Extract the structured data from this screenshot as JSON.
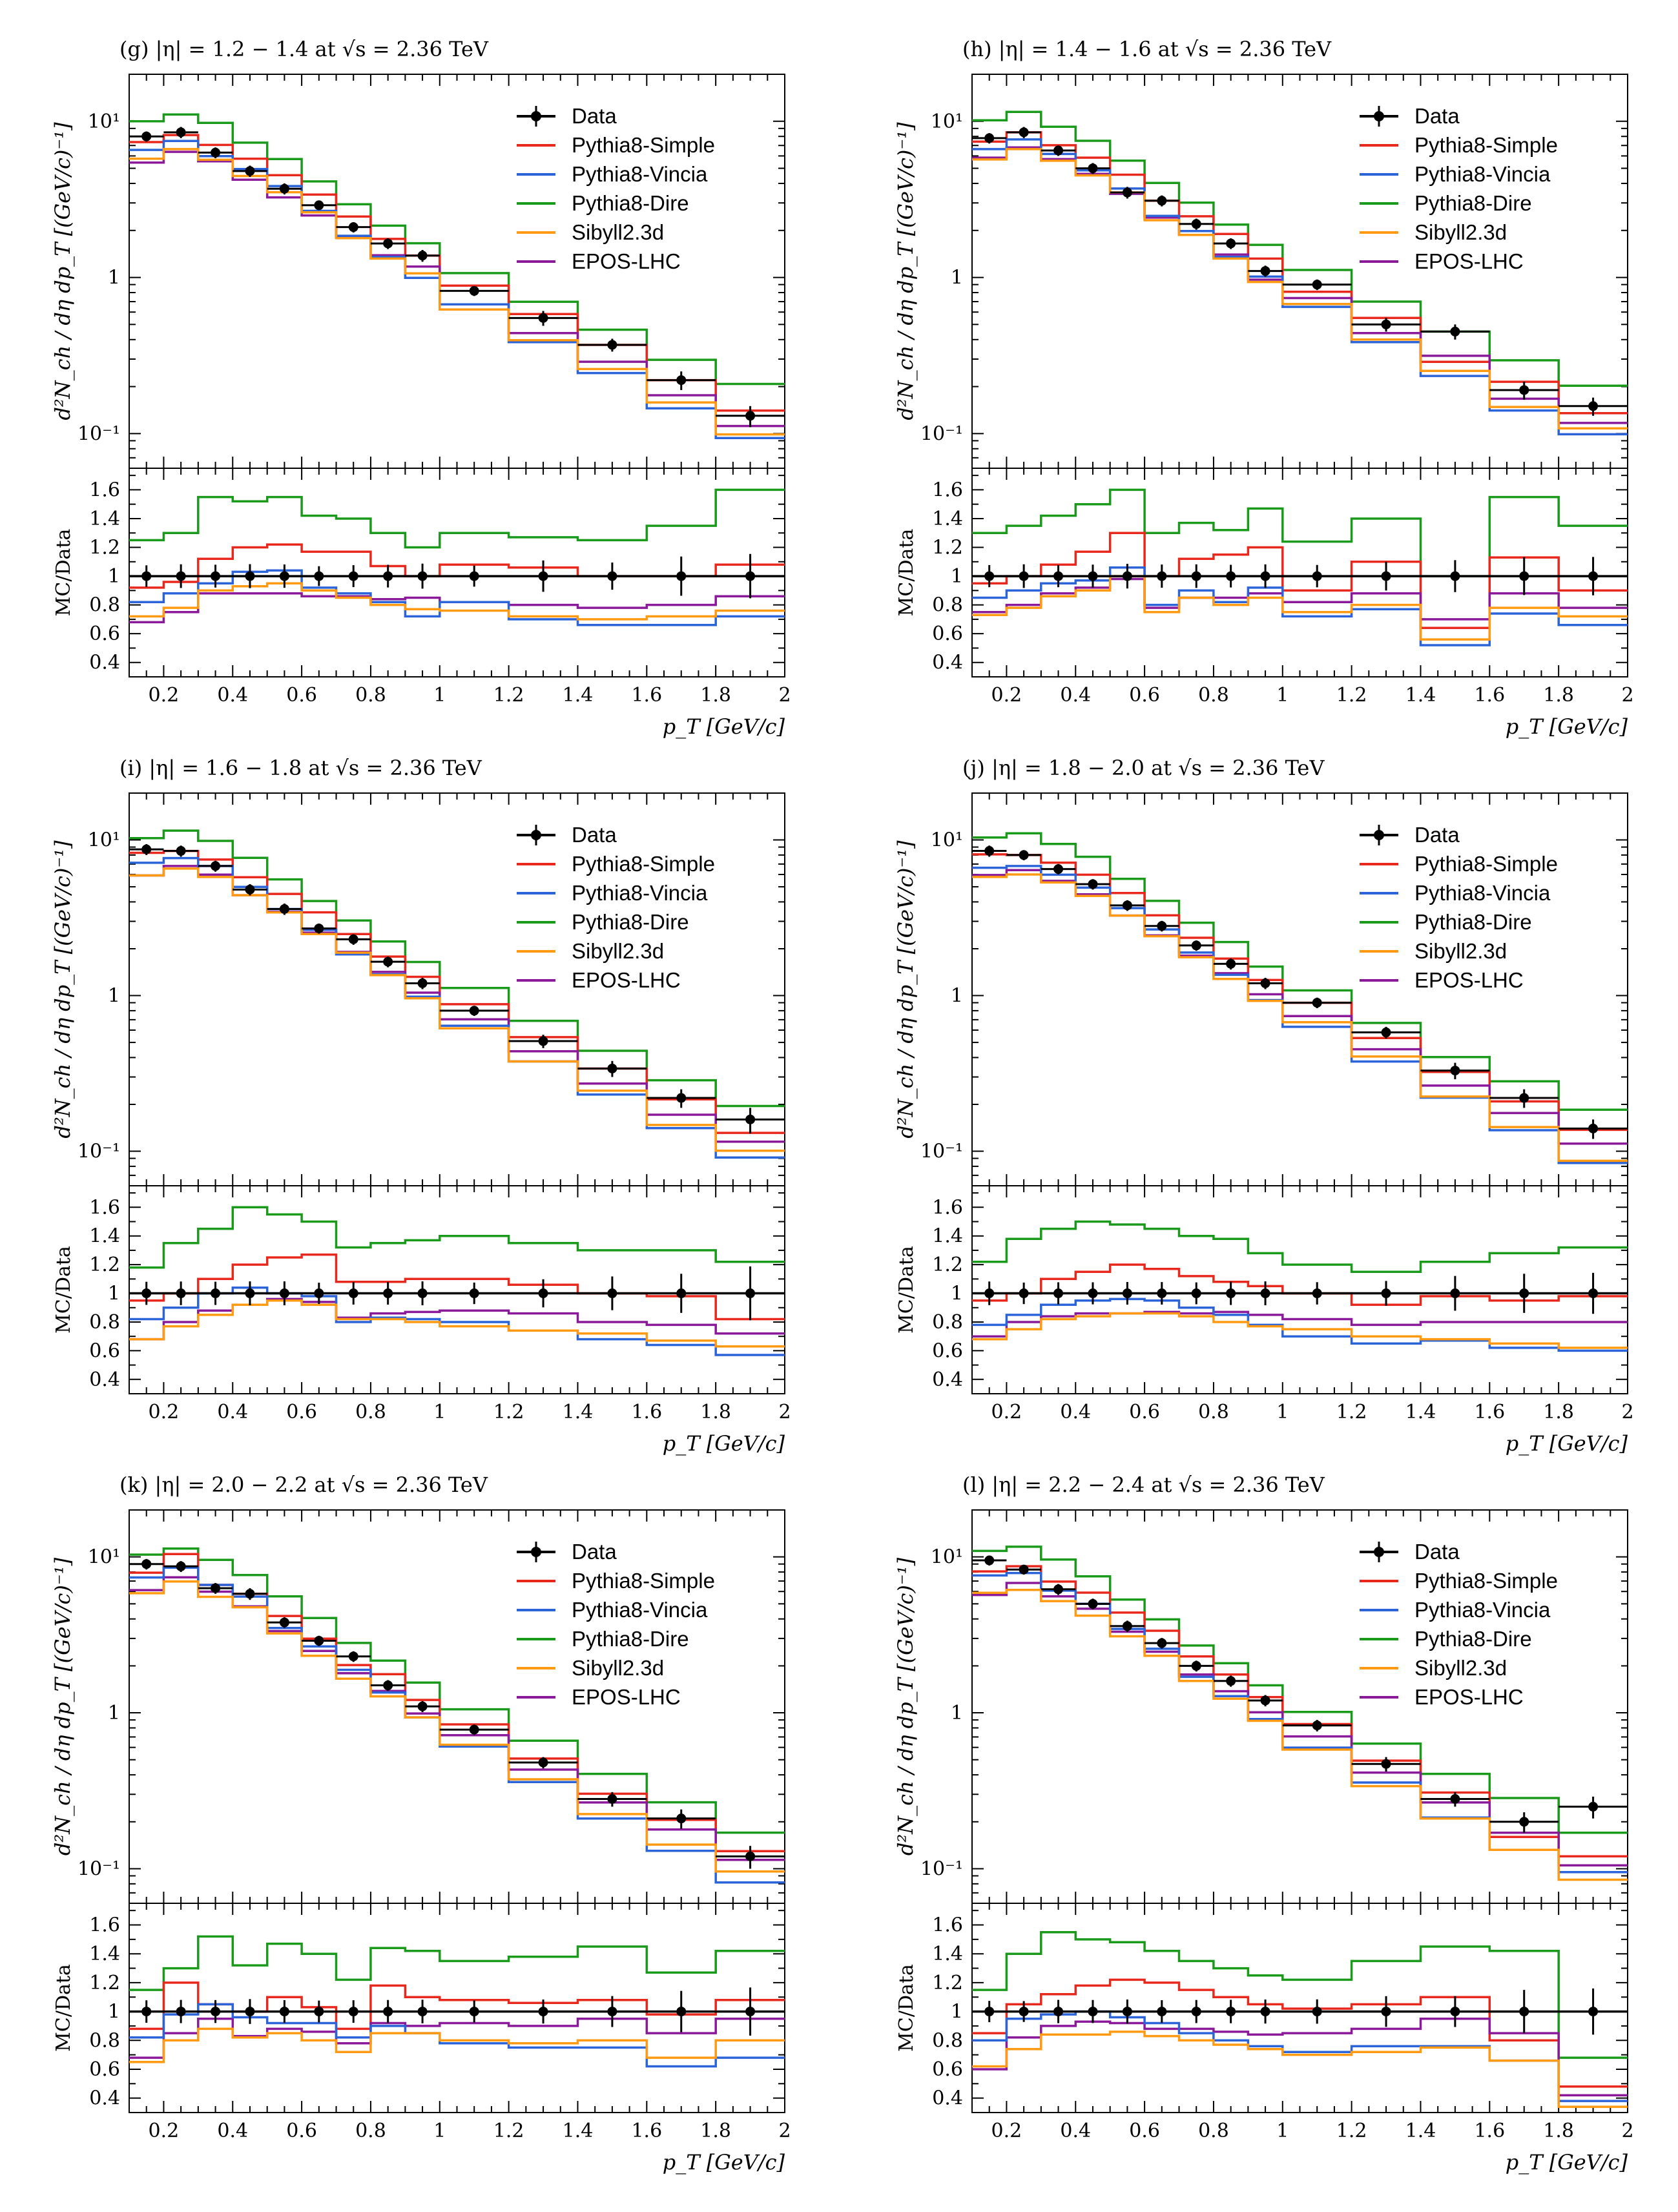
{
  "colors": {
    "data": "#000000",
    "Pythia8-Simple": "#e8281c",
    "Pythia8-Vincia": "#2b64d8",
    "Pythia8-Dire": "#1a9a1a",
    "Sibyll2.3d": "#ff9a12",
    "EPOS-LHC": "#8a1a9a"
  },
  "axes": {
    "ylabel_top": "d²N_ch / dη dp_T [(GeV/c)⁻¹]",
    "ylabel_ratio": "MC/Data",
    "xlabel": "p_T [GeV/c]",
    "xlim": [
      0.1,
      2.0
    ],
    "ylim_top_log": [
      0.06,
      20
    ],
    "ylim_ratio": [
      0.3,
      1.75
    ],
    "xticks": [
      "0.2",
      "0.4",
      "0.6",
      "0.8",
      "1",
      "1.2",
      "1.4",
      "1.6",
      "1.8",
      "2"
    ],
    "xtick_values": [
      0.2,
      0.4,
      0.6,
      0.8,
      1.0,
      1.2,
      1.4,
      1.6,
      1.8,
      2.0
    ],
    "yticks_top": [
      "10⁻¹",
      "1",
      "10¹"
    ],
    "ytick_top_values": [
      0.1,
      1,
      10
    ],
    "yticks_ratio": [
      "0.4",
      "0.6",
      "0.8",
      "1",
      "1.2",
      "1.4",
      "1.6"
    ],
    "ytick_ratio_values": [
      0.4,
      0.6,
      0.8,
      1.0,
      1.2,
      1.4,
      1.6
    ]
  },
  "legend": [
    "Data",
    "Pythia8-Simple",
    "Pythia8-Vincia",
    "Pythia8-Dire",
    "Sibyll2.3d",
    "EPOS-LHC"
  ],
  "chart_data": [
    {
      "type": "line",
      "step": true,
      "title": "(g) |η| = 1.2 − 1.4 at √s = 2.36 TeV",
      "bin_edges": [
        0.1,
        0.2,
        0.3,
        0.4,
        0.5,
        0.6,
        0.7,
        0.8,
        0.9,
        1.0,
        1.2,
        1.4,
        1.6,
        1.8,
        2.0
      ],
      "x": [
        0.15,
        0.25,
        0.35,
        0.45,
        0.55,
        0.65,
        0.75,
        0.85,
        0.95,
        1.1,
        1.3,
        1.5,
        1.7,
        1.9
      ],
      "data": [
        8.0,
        8.5,
        6.3,
        4.8,
        3.7,
        2.9,
        2.1,
        1.65,
        1.38,
        0.82,
        0.55,
        0.37,
        0.22,
        0.13
      ],
      "data_err": [
        0.6,
        0.7,
        0.5,
        0.4,
        0.3,
        0.2,
        0.16,
        0.13,
        0.12,
        0.06,
        0.06,
        0.035,
        0.03,
        0.02
      ],
      "series": [
        {
          "name": "Pythia8-Simple",
          "ratio": [
            0.92,
            0.96,
            1.12,
            1.2,
            1.22,
            1.17,
            1.17,
            1.07,
            1.0,
            1.08,
            1.06,
            1.0,
            1.0,
            1.08
          ]
        },
        {
          "name": "Pythia8-Vincia",
          "ratio": [
            0.82,
            0.88,
            0.95,
            1.03,
            1.04,
            0.92,
            0.88,
            0.82,
            0.72,
            0.82,
            0.7,
            0.66,
            0.66,
            0.72
          ]
        },
        {
          "name": "Pythia8-Dire",
          "ratio": [
            1.25,
            1.3,
            1.55,
            1.52,
            1.55,
            1.42,
            1.4,
            1.3,
            1.2,
            1.3,
            1.27,
            1.25,
            1.35,
            1.6
          ]
        },
        {
          "name": "Sibyll2.3d",
          "ratio": [
            0.72,
            0.78,
            0.9,
            0.93,
            0.95,
            0.9,
            0.85,
            0.8,
            0.77,
            0.76,
            0.72,
            0.7,
            0.72,
            0.76
          ]
        },
        {
          "name": "EPOS-LHC",
          "ratio": [
            0.68,
            0.75,
            0.88,
            0.88,
            0.88,
            0.86,
            0.86,
            0.84,
            0.85,
            0.82,
            0.8,
            0.78,
            0.8,
            0.86
          ]
        }
      ]
    },
    {
      "type": "line",
      "step": true,
      "title": "(h) |η| = 1.4 − 1.6 at √s = 2.36 TeV",
      "bin_edges": [
        0.1,
        0.2,
        0.3,
        0.4,
        0.5,
        0.6,
        0.7,
        0.8,
        0.9,
        1.0,
        1.2,
        1.4,
        1.6,
        1.8,
        2.0
      ],
      "x": [
        0.15,
        0.25,
        0.35,
        0.45,
        0.55,
        0.65,
        0.75,
        0.85,
        0.95,
        1.1,
        1.3,
        1.5,
        1.7,
        1.9
      ],
      "data": [
        7.8,
        8.5,
        6.5,
        5.0,
        3.5,
        3.1,
        2.2,
        1.65,
        1.1,
        0.9,
        0.5,
        0.45,
        0.19,
        0.15
      ],
      "data_err": [
        0.6,
        0.7,
        0.5,
        0.4,
        0.3,
        0.25,
        0.18,
        0.13,
        0.09,
        0.07,
        0.05,
        0.05,
        0.025,
        0.02
      ],
      "series": [
        {
          "name": "Pythia8-Simple",
          "ratio": [
            0.95,
            1.0,
            1.08,
            1.17,
            1.3,
            1.0,
            1.12,
            1.15,
            1.2,
            0.9,
            1.1,
            0.64,
            1.13,
            0.9
          ]
        },
        {
          "name": "Pythia8-Vincia",
          "ratio": [
            0.85,
            0.9,
            0.95,
            0.97,
            1.06,
            0.8,
            0.9,
            0.82,
            0.92,
            0.72,
            0.77,
            0.52,
            0.74,
            0.66
          ]
        },
        {
          "name": "Pythia8-Dire",
          "ratio": [
            1.3,
            1.35,
            1.42,
            1.5,
            1.6,
            1.3,
            1.37,
            1.32,
            1.47,
            1.24,
            1.4,
            1.0,
            1.55,
            1.35
          ]
        },
        {
          "name": "Sibyll2.3d",
          "ratio": [
            0.73,
            0.78,
            0.86,
            0.9,
            1.0,
            0.75,
            0.85,
            0.8,
            0.85,
            0.75,
            0.8,
            0.56,
            0.78,
            0.72
          ]
        },
        {
          "name": "EPOS-LHC",
          "ratio": [
            0.75,
            0.8,
            0.88,
            0.92,
            0.98,
            0.78,
            0.85,
            0.85,
            0.88,
            0.82,
            0.88,
            0.7,
            0.88,
            0.78
          ]
        }
      ]
    },
    {
      "type": "line",
      "step": true,
      "title": "(i) |η| = 1.6 − 1.8 at √s = 2.36 TeV",
      "bin_edges": [
        0.1,
        0.2,
        0.3,
        0.4,
        0.5,
        0.6,
        0.7,
        0.8,
        0.9,
        1.0,
        1.2,
        1.4,
        1.6,
        1.8,
        2.0
      ],
      "x": [
        0.15,
        0.25,
        0.35,
        0.45,
        0.55,
        0.65,
        0.75,
        0.85,
        0.95,
        1.1,
        1.3,
        1.5,
        1.7,
        1.9
      ],
      "data": [
        8.7,
        8.5,
        6.8,
        4.8,
        3.6,
        2.7,
        2.3,
        1.65,
        1.2,
        0.8,
        0.51,
        0.34,
        0.22,
        0.16
      ],
      "data_err": [
        0.7,
        0.7,
        0.55,
        0.4,
        0.3,
        0.2,
        0.18,
        0.13,
        0.1,
        0.06,
        0.05,
        0.04,
        0.03,
        0.03
      ],
      "series": [
        {
          "name": "Pythia8-Simple",
          "ratio": [
            0.95,
            1.0,
            1.1,
            1.2,
            1.25,
            1.27,
            1.08,
            1.08,
            1.1,
            1.1,
            1.06,
            1.0,
            0.98,
            0.82
          ]
        },
        {
          "name": "Pythia8-Vincia",
          "ratio": [
            0.82,
            0.9,
            1.0,
            1.04,
            1.0,
            0.98,
            0.8,
            0.83,
            0.82,
            0.8,
            0.74,
            0.68,
            0.64,
            0.57
          ]
        },
        {
          "name": "Pythia8-Dire",
          "ratio": [
            1.18,
            1.35,
            1.45,
            1.6,
            1.55,
            1.5,
            1.32,
            1.35,
            1.37,
            1.4,
            1.35,
            1.3,
            1.3,
            1.22
          ]
        },
        {
          "name": "Sibyll2.3d",
          "ratio": [
            0.68,
            0.77,
            0.85,
            0.92,
            0.95,
            0.92,
            0.82,
            0.82,
            0.8,
            0.77,
            0.74,
            0.72,
            0.67,
            0.63
          ]
        },
        {
          "name": "EPOS-LHC",
          "ratio": [
            0.68,
            0.8,
            0.88,
            0.92,
            0.96,
            0.94,
            0.83,
            0.86,
            0.87,
            0.88,
            0.86,
            0.8,
            0.78,
            0.72
          ]
        }
      ]
    },
    {
      "type": "line",
      "step": true,
      "title": "(j) |η| = 1.8 − 2.0 at √s = 2.36 TeV",
      "bin_edges": [
        0.1,
        0.2,
        0.3,
        0.4,
        0.5,
        0.6,
        0.7,
        0.8,
        0.9,
        1.0,
        1.2,
        1.4,
        1.6,
        1.8,
        2.0
      ],
      "x": [
        0.15,
        0.25,
        0.35,
        0.45,
        0.55,
        0.65,
        0.75,
        0.85,
        0.95,
        1.1,
        1.3,
        1.5,
        1.7,
        1.9
      ],
      "data": [
        8.5,
        8.0,
        6.5,
        5.2,
        3.8,
        2.8,
        2.1,
        1.6,
        1.2,
        0.9,
        0.58,
        0.33,
        0.22,
        0.14
      ],
      "data_err": [
        0.7,
        0.6,
        0.5,
        0.4,
        0.3,
        0.22,
        0.16,
        0.13,
        0.1,
        0.07,
        0.05,
        0.04,
        0.03,
        0.02
      ],
      "series": [
        {
          "name": "Pythia8-Simple",
          "ratio": [
            0.95,
            1.0,
            1.1,
            1.15,
            1.2,
            1.17,
            1.12,
            1.08,
            1.05,
            1.0,
            0.92,
            0.98,
            0.95,
            0.98
          ]
        },
        {
          "name": "Pythia8-Vincia",
          "ratio": [
            0.78,
            0.85,
            0.92,
            0.95,
            0.96,
            0.95,
            0.9,
            0.85,
            0.78,
            0.7,
            0.65,
            0.67,
            0.62,
            0.6
          ]
        },
        {
          "name": "Pythia8-Dire",
          "ratio": [
            1.22,
            1.38,
            1.45,
            1.5,
            1.48,
            1.45,
            1.4,
            1.38,
            1.28,
            1.2,
            1.15,
            1.22,
            1.28,
            1.32
          ]
        },
        {
          "name": "Sibyll2.3d",
          "ratio": [
            0.68,
            0.75,
            0.82,
            0.84,
            0.86,
            0.86,
            0.84,
            0.8,
            0.77,
            0.75,
            0.7,
            0.68,
            0.65,
            0.62
          ]
        },
        {
          "name": "EPOS-LHC",
          "ratio": [
            0.7,
            0.8,
            0.84,
            0.86,
            0.86,
            0.87,
            0.86,
            0.87,
            0.85,
            0.82,
            0.78,
            0.8,
            0.8,
            0.8
          ]
        }
      ]
    },
    {
      "type": "line",
      "step": true,
      "title": "(k) |η| = 2.0 − 2.2 at √s = 2.36 TeV",
      "bin_edges": [
        0.1,
        0.2,
        0.3,
        0.4,
        0.5,
        0.6,
        0.7,
        0.8,
        0.9,
        1.0,
        1.2,
        1.4,
        1.6,
        1.8,
        2.0
      ],
      "x": [
        0.15,
        0.25,
        0.35,
        0.45,
        0.55,
        0.65,
        0.75,
        0.85,
        0.95,
        1.1,
        1.3,
        1.5,
        1.7,
        1.9
      ],
      "data": [
        9.0,
        8.7,
        6.3,
        5.8,
        3.8,
        2.9,
        2.3,
        1.5,
        1.1,
        0.78,
        0.48,
        0.28,
        0.21,
        0.12
      ],
      "data_err": [
        0.7,
        0.7,
        0.5,
        0.5,
        0.3,
        0.22,
        0.18,
        0.12,
        0.09,
        0.06,
        0.04,
        0.03,
        0.03,
        0.02
      ],
      "series": [
        {
          "name": "Pythia8-Simple",
          "ratio": [
            0.88,
            1.2,
            1.05,
            1.0,
            1.1,
            1.03,
            0.88,
            1.18,
            1.1,
            1.08,
            1.06,
            1.08,
            0.98,
            1.08
          ]
        },
        {
          "name": "Pythia8-Vincia",
          "ratio": [
            0.82,
            0.98,
            1.05,
            0.96,
            0.92,
            0.92,
            0.82,
            0.9,
            0.85,
            0.78,
            0.75,
            0.75,
            0.62,
            0.68
          ]
        },
        {
          "name": "Pythia8-Dire",
          "ratio": [
            1.15,
            1.3,
            1.52,
            1.32,
            1.47,
            1.4,
            1.22,
            1.44,
            1.42,
            1.35,
            1.38,
            1.45,
            1.27,
            1.42
          ]
        },
        {
          "name": "Sibyll2.3d",
          "ratio": [
            0.65,
            0.8,
            0.88,
            0.82,
            0.85,
            0.8,
            0.72,
            0.85,
            0.85,
            0.8,
            0.78,
            0.8,
            0.68,
            0.8
          ]
        },
        {
          "name": "EPOS-LHC",
          "ratio": [
            0.68,
            0.85,
            0.95,
            0.83,
            0.88,
            0.86,
            0.78,
            0.92,
            0.9,
            0.92,
            0.9,
            0.95,
            0.85,
            0.95
          ]
        }
      ]
    },
    {
      "type": "line",
      "step": true,
      "title": "(l) |η| = 2.2 − 2.4 at √s = 2.36 TeV",
      "bin_edges": [
        0.1,
        0.2,
        0.3,
        0.4,
        0.5,
        0.6,
        0.7,
        0.8,
        0.9,
        1.0,
        1.2,
        1.4,
        1.6,
        1.8,
        2.0
      ],
      "x": [
        0.15,
        0.25,
        0.35,
        0.45,
        0.55,
        0.65,
        0.75,
        0.85,
        0.95,
        1.1,
        1.3,
        1.5,
        1.7,
        1.9
      ],
      "data": [
        9.5,
        8.3,
        6.2,
        5.0,
        3.6,
        2.8,
        2.0,
        1.6,
        1.2,
        0.83,
        0.47,
        0.28,
        0.2,
        0.25
      ],
      "data_err": [
        0.7,
        0.6,
        0.5,
        0.4,
        0.3,
        0.22,
        0.16,
        0.13,
        0.1,
        0.07,
        0.05,
        0.03,
        0.03,
        0.04
      ],
      "series": [
        {
          "name": "Pythia8-Simple",
          "ratio": [
            0.85,
            1.05,
            1.12,
            1.18,
            1.22,
            1.2,
            1.15,
            1.1,
            1.05,
            1.02,
            1.05,
            1.1,
            0.8,
            0.48
          ]
        },
        {
          "name": "Pythia8-Vincia",
          "ratio": [
            0.8,
            0.95,
            0.98,
            1.0,
            0.96,
            0.92,
            0.85,
            0.8,
            0.76,
            0.72,
            0.76,
            0.76,
            0.66,
            0.38
          ]
        },
        {
          "name": "Pythia8-Dire",
          "ratio": [
            1.15,
            1.4,
            1.55,
            1.5,
            1.48,
            1.42,
            1.35,
            1.3,
            1.25,
            1.22,
            1.35,
            1.45,
            1.42,
            0.68
          ]
        },
        {
          "name": "Sibyll2.3d",
          "ratio": [
            0.62,
            0.74,
            0.84,
            0.84,
            0.86,
            0.83,
            0.8,
            0.77,
            0.74,
            0.7,
            0.72,
            0.75,
            0.66,
            0.34
          ]
        },
        {
          "name": "EPOS-LHC",
          "ratio": [
            0.6,
            0.82,
            0.9,
            0.93,
            0.92,
            0.88,
            0.88,
            0.86,
            0.84,
            0.85,
            0.88,
            0.95,
            0.85,
            0.42
          ]
        }
      ]
    }
  ]
}
